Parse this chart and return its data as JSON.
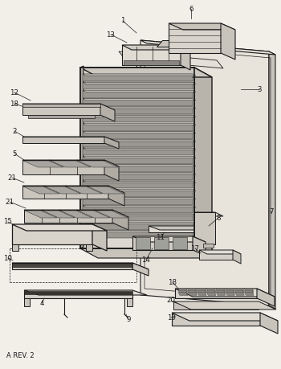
{
  "footer": "A REV. 2",
  "bg_color": "#f2efe9",
  "line_color": "#1a1a1a",
  "fill_light": "#e0dcd4",
  "fill_mid": "#c8c4bc",
  "fill_dark": "#a8a4a0"
}
